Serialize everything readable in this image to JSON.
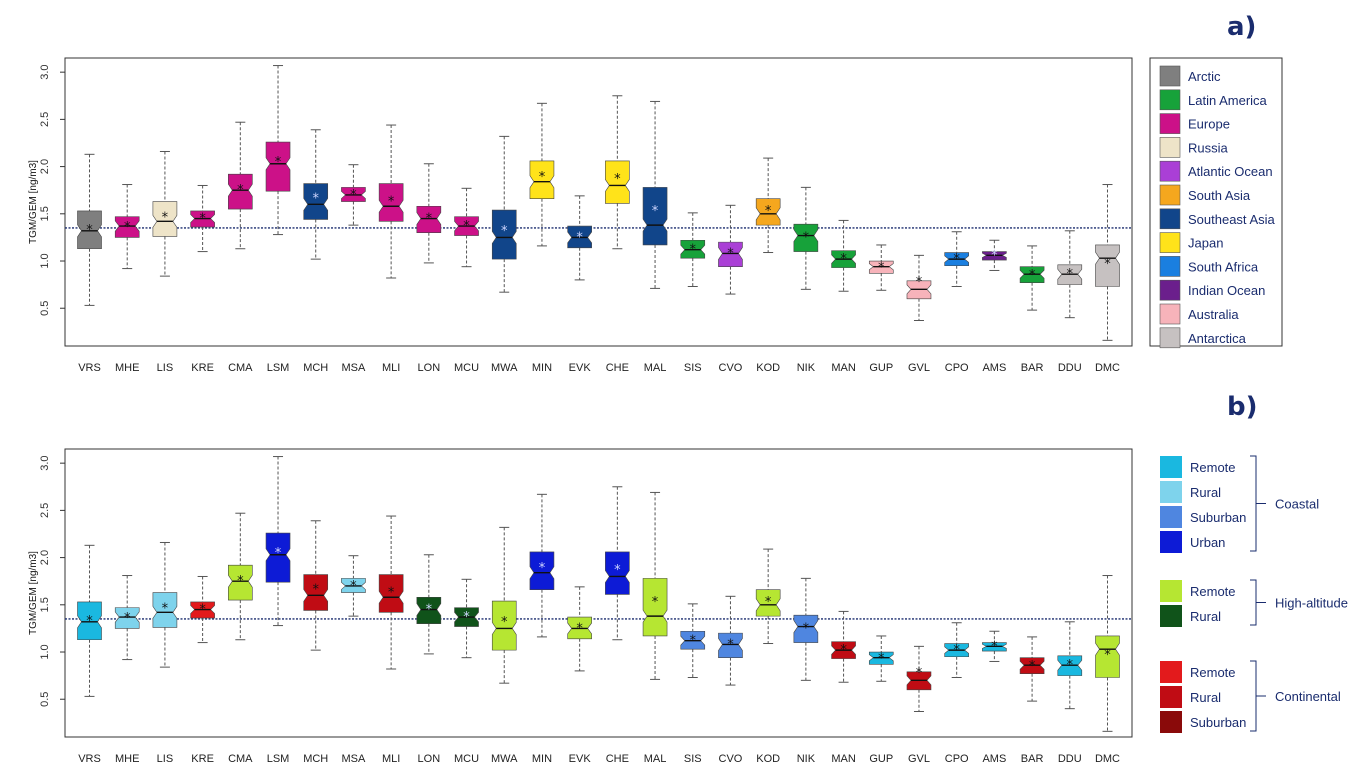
{
  "chart_data": [
    {
      "type": "boxplot",
      "panel_label": "a)",
      "ylabel": "TGM/GEM [ng/m3]",
      "ylim": [
        0.1,
        3.15
      ],
      "yticks": [
        0.5,
        1.0,
        1.5,
        2.0,
        2.5,
        3.0
      ],
      "ytick_labels": [
        "0.5",
        "1.0",
        "1.5",
        "2.0",
        "2.5",
        "3.0"
      ],
      "reference_line": 1.35,
      "legend": [
        {
          "label": "Arctic",
          "color": "#7f7f7f"
        },
        {
          "label": "Latin America",
          "color": "#17a23a"
        },
        {
          "label": "Europe",
          "color": "#cc1188"
        },
        {
          "label": "Russia",
          "color": "#eee4c8"
        },
        {
          "label": "Atlantic Ocean",
          "color": "#aa3fd6"
        },
        {
          "label": "South Asia",
          "color": "#f5a71e"
        },
        {
          "label": "Southeast Asia",
          "color": "#11458a"
        },
        {
          "label": "Japan",
          "color": "#ffe31a"
        },
        {
          "label": "South Africa",
          "color": "#1a7fe0"
        },
        {
          "label": "Indian Ocean",
          "color": "#6b1f8c"
        },
        {
          "label": "Australia",
          "color": "#f7b3ba"
        },
        {
          "label": "Antarctica",
          "color": "#c6c1c1"
        }
      ],
      "stations": [
        {
          "name": "VRS",
          "group": "Arctic",
          "min": 0.53,
          "q1": 1.13,
          "median": 1.32,
          "q3": 1.53,
          "max": 2.13,
          "mean": 1.33
        },
        {
          "name": "MHE",
          "group": "Europe",
          "min": 0.92,
          "q1": 1.25,
          "median": 1.37,
          "q3": 1.47,
          "max": 1.81,
          "mean": 1.36
        },
        {
          "name": "LIS",
          "group": "Russia",
          "min": 0.84,
          "q1": 1.26,
          "median": 1.42,
          "q3": 1.63,
          "max": 2.16,
          "mean": 1.46
        },
        {
          "name": "KRE",
          "group": "Europe",
          "min": 1.1,
          "q1": 1.36,
          "median": 1.45,
          "q3": 1.53,
          "max": 1.8,
          "mean": 1.45
        },
        {
          "name": "CMA",
          "group": "Europe",
          "min": 1.13,
          "q1": 1.55,
          "median": 1.75,
          "q3": 1.92,
          "max": 2.47,
          "mean": 1.75
        },
        {
          "name": "LSM",
          "group": "Europe",
          "min": 1.28,
          "q1": 1.74,
          "median": 2.03,
          "q3": 2.26,
          "max": 3.07,
          "mean": 2.05
        },
        {
          "name": "MCH",
          "group": "Southeast Asia",
          "min": 1.02,
          "q1": 1.44,
          "median": 1.6,
          "q3": 1.82,
          "max": 2.39,
          "mean": 1.66
        },
        {
          "name": "MSA",
          "group": "Europe",
          "min": 1.38,
          "q1": 1.63,
          "median": 1.7,
          "q3": 1.78,
          "max": 2.02,
          "mean": 1.7
        },
        {
          "name": "MLI",
          "group": "Europe",
          "min": 0.82,
          "q1": 1.42,
          "median": 1.58,
          "q3": 1.82,
          "max": 2.44,
          "mean": 1.63
        },
        {
          "name": "LON",
          "group": "Europe",
          "min": 0.98,
          "q1": 1.3,
          "median": 1.45,
          "q3": 1.58,
          "max": 2.03,
          "mean": 1.45
        },
        {
          "name": "MCU",
          "group": "Europe",
          "min": 0.94,
          "q1": 1.27,
          "median": 1.37,
          "q3": 1.47,
          "max": 1.77,
          "mean": 1.37
        },
        {
          "name": "MWA",
          "group": "Southeast Asia",
          "min": 0.67,
          "q1": 1.02,
          "median": 1.25,
          "q3": 1.54,
          "max": 2.32,
          "mean": 1.32
        },
        {
          "name": "MIN",
          "group": "Japan",
          "min": 1.16,
          "q1": 1.66,
          "median": 1.84,
          "q3": 2.06,
          "max": 2.67,
          "mean": 1.89
        },
        {
          "name": "EVK",
          "group": "Southeast Asia",
          "min": 0.8,
          "q1": 1.14,
          "median": 1.25,
          "q3": 1.37,
          "max": 1.69,
          "mean": 1.25
        },
        {
          "name": "CHE",
          "group": "Japan",
          "min": 1.13,
          "q1": 1.61,
          "median": 1.8,
          "q3": 2.06,
          "max": 2.75,
          "mean": 1.87
        },
        {
          "name": "MAL",
          "group": "Southeast Asia",
          "min": 0.71,
          "q1": 1.17,
          "median": 1.38,
          "q3": 1.78,
          "max": 2.69,
          "mean": 1.53
        },
        {
          "name": "SIS",
          "group": "Latin America",
          "min": 0.73,
          "q1": 1.03,
          "median": 1.12,
          "q3": 1.22,
          "max": 1.51,
          "mean": 1.12
        },
        {
          "name": "CVO",
          "group": "Atlantic Ocean",
          "min": 0.65,
          "q1": 0.94,
          "median": 1.08,
          "q3": 1.2,
          "max": 1.59,
          "mean": 1.08
        },
        {
          "name": "KOD",
          "group": "South Asia",
          "min": 1.09,
          "q1": 1.38,
          "median": 1.5,
          "q3": 1.66,
          "max": 2.09,
          "mean": 1.53
        },
        {
          "name": "NIK",
          "group": "Latin America",
          "min": 0.7,
          "q1": 1.1,
          "median": 1.27,
          "q3": 1.39,
          "max": 1.78,
          "mean": 1.25
        },
        {
          "name": "MAN",
          "group": "Latin America",
          "min": 0.68,
          "q1": 0.93,
          "median": 1.02,
          "q3": 1.11,
          "max": 1.43,
          "mean": 1.02
        },
        {
          "name": "GUP",
          "group": "Australia",
          "min": 0.69,
          "q1": 0.87,
          "median": 0.94,
          "q3": 1.0,
          "max": 1.17,
          "mean": 0.93
        },
        {
          "name": "GVL",
          "group": "Australia",
          "min": 0.37,
          "q1": 0.6,
          "median": 0.7,
          "q3": 0.79,
          "max": 1.06,
          "mean": 0.78
        },
        {
          "name": "CPO",
          "group": "South Africa",
          "min": 0.73,
          "q1": 0.95,
          "median": 1.02,
          "q3": 1.09,
          "max": 1.31,
          "mean": 1.02
        },
        {
          "name": "AMS",
          "group": "Indian Ocean",
          "min": 0.9,
          "q1": 1.01,
          "median": 1.06,
          "q3": 1.1,
          "max": 1.22,
          "mean": 1.06
        },
        {
          "name": "BAR",
          "group": "Latin America",
          "min": 0.48,
          "q1": 0.77,
          "median": 0.86,
          "q3": 0.94,
          "max": 1.16,
          "mean": 0.85
        },
        {
          "name": "DDU",
          "group": "Antarctica",
          "min": 0.4,
          "q1": 0.75,
          "median": 0.86,
          "q3": 0.96,
          "max": 1.32,
          "mean": 0.86
        },
        {
          "name": "DMC",
          "group": "Antarctica",
          "min": 0.16,
          "q1": 0.73,
          "median": 1.03,
          "q3": 1.17,
          "max": 1.81,
          "mean": 0.97
        }
      ]
    },
    {
      "type": "boxplot",
      "panel_label": "b)",
      "ylabel": "TGM/GEM [ng/m3]",
      "ylim": [
        0.1,
        3.15
      ],
      "yticks": [
        0.5,
        1.0,
        1.5,
        2.0,
        2.5,
        3.0
      ],
      "ytick_labels": [
        "0.5",
        "1.0",
        "1.5",
        "2.0",
        "2.5",
        "3.0"
      ],
      "reference_line": 1.35,
      "legend": [
        {
          "label": "Remote",
          "color": "#1ab8e0",
          "group": "Coastal"
        },
        {
          "label": "Rural",
          "color": "#7ed3ec",
          "group": "Coastal"
        },
        {
          "label": "Suburban",
          "color": "#4f86e0",
          "group": "Coastal"
        },
        {
          "label": "Urban",
          "color": "#0d1bd6",
          "group": "Coastal"
        },
        {
          "label": "Remote",
          "color": "#b6e632",
          "group": "High-altitude"
        },
        {
          "label": "Rural",
          "color": "#10531a",
          "group": "High-altitude"
        },
        {
          "label": "Remote",
          "color": "#e31a1c",
          "group": "Continental"
        },
        {
          "label": "Rural",
          "color": "#c00c14",
          "group": "Continental"
        },
        {
          "label": "Suburban",
          "color": "#8a0a0a",
          "group": "Continental"
        }
      ],
      "legend_groups": [
        "Coastal",
        "High-altitude",
        "Continental"
      ],
      "station_colors": [
        "#1ab8e0",
        "#7ed3ec",
        "#7ed3ec",
        "#e31a1c",
        "#b6e632",
        "#0d1bd6",
        "#c00c14",
        "#7ed3ec",
        "#c00c14",
        "#10531a",
        "#10531a",
        "#b6e632",
        "#0d1bd6",
        "#b6e632",
        "#0d1bd6",
        "#b6e632",
        "#4f86e0",
        "#4f86e0",
        "#b6e632",
        "#4f86e0",
        "#c00c14",
        "#1ab8e0",
        "#c00c14",
        "#1ab8e0",
        "#1ab8e0",
        "#c00c14",
        "#1ab8e0",
        "#b6e632"
      ]
    }
  ]
}
